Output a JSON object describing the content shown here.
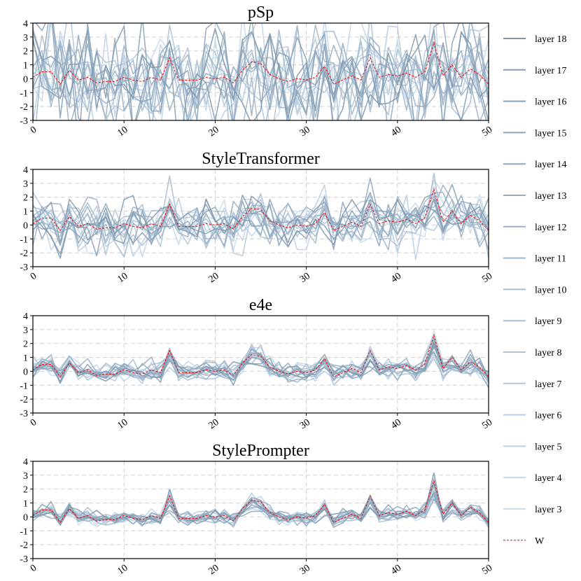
{
  "chart_data": {
    "type": "line",
    "panels": [
      {
        "title": "pSp",
        "spread": 1.9,
        "clip": true,
        "spikes": 1.0
      },
      {
        "title": "StyleTransformer",
        "spread": 0.9,
        "clip": false,
        "spikes": 0.35
      },
      {
        "title": "e4e",
        "spread": 0.35,
        "clip": false,
        "spikes": 0.15
      },
      {
        "title": "StylePrompter",
        "spread": 0.25,
        "clip": false,
        "spikes": 0.05
      }
    ],
    "x": {
      "min": 0,
      "max": 50,
      "ticks": [
        0,
        10,
        20,
        30,
        40,
        50
      ]
    },
    "y": {
      "min": -3,
      "max": 4,
      "ticks": [
        4,
        3,
        2,
        1,
        0,
        -1,
        -2,
        -3
      ]
    },
    "grid": "dashed",
    "legend": {
      "position": "right",
      "entries": [
        {
          "label": "layer 18",
          "color": "#7e97ad"
        },
        {
          "label": "layer 17",
          "color": "#839cb2"
        },
        {
          "label": "layer 16",
          "color": "#87a0b6"
        },
        {
          "label": "layer 15",
          "color": "#8ca5ba"
        },
        {
          "label": "layer 14",
          "color": "#91a9be"
        },
        {
          "label": "layer 13",
          "color": "#96aec3"
        },
        {
          "label": "layer 12",
          "color": "#9bb2c7"
        },
        {
          "label": "layer 11",
          "color": "#a0b7cb"
        },
        {
          "label": "layer 10",
          "color": "#a5bbcf"
        },
        {
          "label": "layer 9",
          "color": "#aabfd3"
        },
        {
          "label": "layer 8",
          "color": "#afc4d7"
        },
        {
          "label": "layer 7",
          "color": "#b4c8db"
        },
        {
          "label": "layer 6",
          "color": "#b9cde0"
        },
        {
          "label": "layer 5",
          "color": "#bed1e4"
        },
        {
          "label": "layer 4",
          "color": "#c3d6e8"
        },
        {
          "label": "layer 3",
          "color": "#c8daec"
        }
      ],
      "w_entry": {
        "label": "W",
        "color": "#ff0000"
      }
    },
    "w_series": {
      "name": "W",
      "values": [
        0.1,
        0.5,
        0.5,
        -0.4,
        0.6,
        -0.1,
        0.1,
        -0.3,
        -0.2,
        -0.2,
        0.1,
        -0.1,
        -0.2,
        0.1,
        -0.1,
        1.5,
        -0.1,
        -0.1,
        -0.1,
        0.1,
        0.0,
        0.1,
        -0.3,
        0.6,
        1.2,
        1.1,
        0.3,
        0.0,
        -0.2,
        0.0,
        -0.1,
        0.1,
        0.9,
        -0.4,
        -0.1,
        0.2,
        -0.1,
        1.5,
        0.1,
        0.3,
        0.2,
        0.4,
        0.1,
        0.5,
        2.6,
        0.2,
        1.0,
        0.1,
        0.7,
        0.3,
        -0.4
      ]
    }
  }
}
